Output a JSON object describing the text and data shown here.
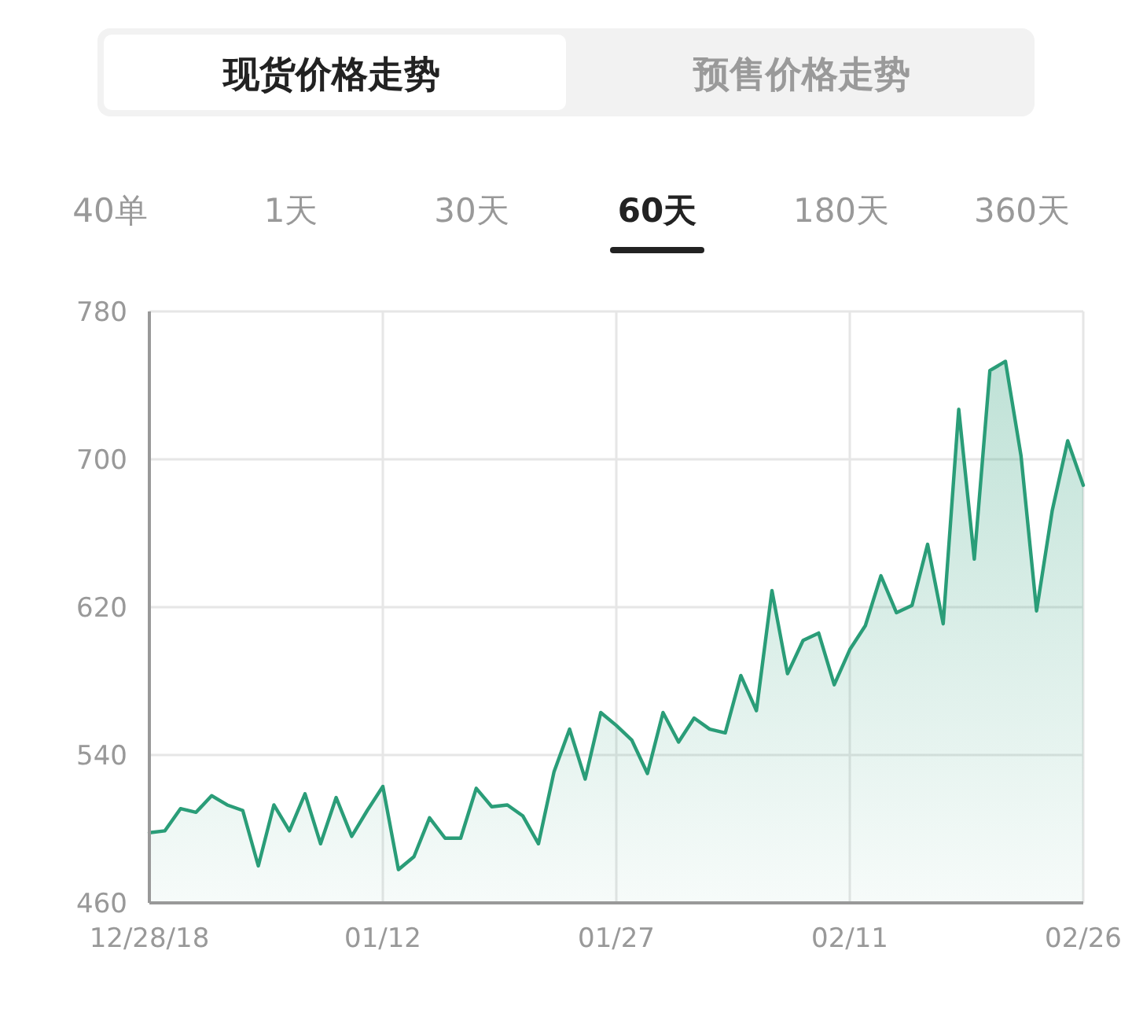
{
  "chart_data": {
    "type": "area",
    "annotations": [
      "现货价格走势",
      "预售价格走势",
      "40单",
      "1天",
      "30天",
      "60天",
      "180天",
      "360天"
    ],
    "x": [
      "2018-12-28",
      "2018-12-29",
      "2018-12-30",
      "2018-12-31",
      "2019-01-01",
      "2019-01-02",
      "2019-01-03",
      "2019-01-04",
      "2019-01-05",
      "2019-01-06",
      "2019-01-07",
      "2019-01-08",
      "2019-01-09",
      "2019-01-10",
      "2019-01-11",
      "2019-01-12",
      "2019-01-13",
      "2019-01-14",
      "2019-01-15",
      "2019-01-16",
      "2019-01-17",
      "2019-01-18",
      "2019-01-19",
      "2019-01-20",
      "2019-01-21",
      "2019-01-22",
      "2019-01-23",
      "2019-01-24",
      "2019-01-25",
      "2019-01-26",
      "2019-01-27",
      "2019-01-28",
      "2019-01-29",
      "2019-01-30",
      "2019-01-31",
      "2019-02-01",
      "2019-02-02",
      "2019-02-03",
      "2019-02-04",
      "2019-02-05",
      "2019-02-06",
      "2019-02-07",
      "2019-02-08",
      "2019-02-09",
      "2019-02-10",
      "2019-02-11",
      "2019-02-12",
      "2019-02-13",
      "2019-02-14",
      "2019-02-15",
      "2019-02-16",
      "2019-02-17",
      "2019-02-18",
      "2019-02-19",
      "2019-02-20",
      "2019-02-21",
      "2019-02-22",
      "2019-02-23",
      "2019-02-24",
      "2019-02-25",
      "2019-02-26"
    ],
    "series": [
      {
        "color": "#2a9d78",
        "values": [
          498,
          499,
          511,
          509,
          518,
          513,
          510,
          480,
          513,
          499,
          519,
          492,
          517,
          496,
          510,
          523,
          478,
          485,
          506,
          495,
          495,
          522,
          512,
          513,
          507,
          492,
          531,
          554,
          527,
          563,
          556,
          548,
          530,
          563,
          547,
          560,
          554,
          552,
          583,
          564,
          629,
          584,
          602,
          606,
          578,
          597,
          610,
          637,
          617,
          621,
          654,
          611,
          727,
          646,
          748,
          753,
          702,
          618,
          672,
          710,
          686
        ]
      }
    ],
    "xlim": [
      "2018-12-28",
      "2019-02-26"
    ],
    "xticks": [
      {
        "value": "2018-12-28",
        "label": "12/28/18"
      },
      {
        "value": "2019-01-12",
        "label": "01/12"
      },
      {
        "value": "2019-01-27",
        "label": "01/27"
      },
      {
        "value": "2019-02-11",
        "label": "02/11"
      },
      {
        "value": "2019-02-26",
        "label": "02/26"
      }
    ],
    "ylim": [
      460,
      780
    ],
    "yticks": [
      460,
      540,
      620,
      700,
      780
    ],
    "grid": true
  }
}
